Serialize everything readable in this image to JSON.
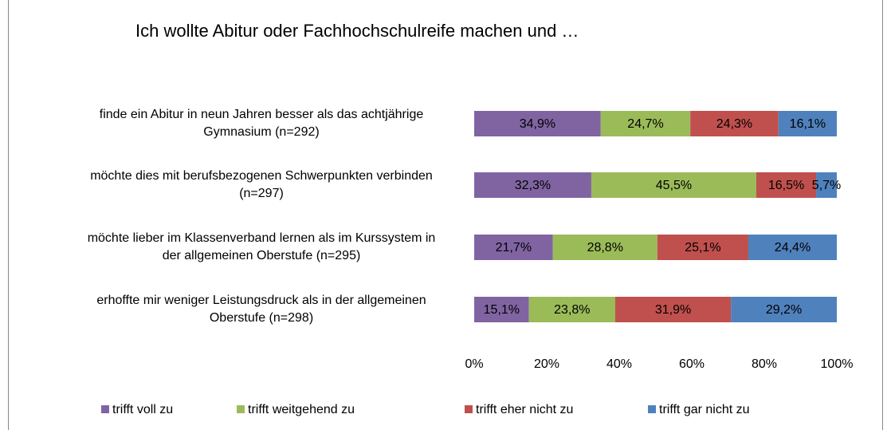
{
  "chart_data": {
    "type": "stacked_bar_horizontal",
    "title": "Ich wollte Abitur oder Fachhochschulreife machen und …",
    "categories": [
      "finde ein Abitur in neun Jahren besser als das achtjährige\nGymnasium (n=292)",
      "möchte dies mit berufsbezogenen Schwerpunkten verbinden\n(n=297)",
      "möchte lieber im Klassenverband lernen als im Kurssystem in\nder allgemeinen Oberstufe (n=295)",
      "erhoffte mir weniger Leistungsdruck als in der allgemeinen\nOberstufe (n=298)"
    ],
    "series": [
      {
        "name": "trifft voll zu",
        "color": "#8064a2",
        "values": [
          34.9,
          32.3,
          21.7,
          15.1
        ],
        "value_labels": [
          "34,9%",
          "32,3%",
          "21,7%",
          "15,1%"
        ]
      },
      {
        "name": "trifft weitgehend zu",
        "color": "#9bbb59",
        "values": [
          24.7,
          45.5,
          28.8,
          23.8
        ],
        "value_labels": [
          "24,7%",
          "45,5%",
          "28,8%",
          "23,8%"
        ]
      },
      {
        "name": "trifft eher nicht zu",
        "color": "#c0504d",
        "values": [
          24.3,
          16.5,
          25.1,
          31.9
        ],
        "value_labels": [
          "24,3%",
          "16,5%",
          "25,1%",
          "31,9%"
        ]
      },
      {
        "name": "trifft gar nicht zu",
        "color": "#4f81bd",
        "values": [
          16.1,
          5.7,
          24.4,
          29.2
        ],
        "value_labels": [
          "16,1%",
          "5,7%",
          "24,4%",
          "29,2%"
        ]
      }
    ],
    "xlim": [
      0,
      100
    ],
    "xticks": [
      {
        "value": 0,
        "label": "0%"
      },
      {
        "value": 20,
        "label": "20%"
      },
      {
        "value": 40,
        "label": "40%"
      },
      {
        "value": 60,
        "label": "60%"
      },
      {
        "value": 80,
        "label": "80%"
      },
      {
        "value": 100,
        "label": "100%"
      }
    ],
    "legend": "bottom"
  }
}
